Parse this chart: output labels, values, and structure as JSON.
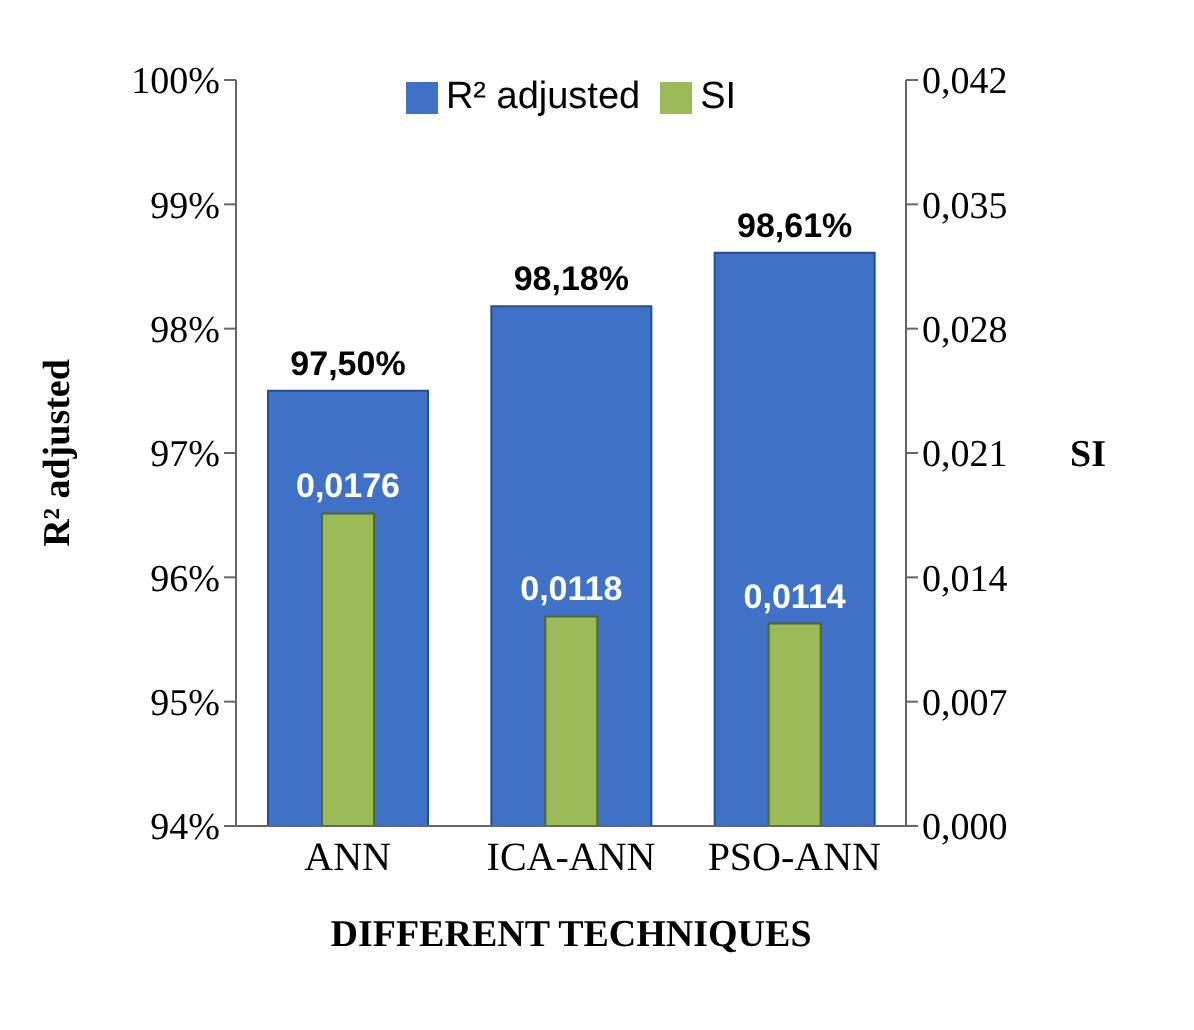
{
  "chart_data": {
    "type": "bar",
    "categories": [
      "ANN",
      "ICA-ANN",
      "PSO-ANN"
    ],
    "series": [
      {
        "name": "R² adjusted",
        "color": "#3f72c6",
        "values": [
          97.5,
          98.18,
          98.61
        ],
        "value_labels": [
          "97,50%",
          "98,18%",
          "98,61%"
        ]
      },
      {
        "name": "SI",
        "color": "#9bbb59",
        "axis": "y2",
        "values": [
          0.0176,
          0.0118,
          0.0114
        ],
        "value_labels": [
          "0,0176",
          "0,0118",
          "0,0114"
        ]
      }
    ],
    "xlabel": "DIFFERENT TECHNIQUES",
    "ylabel": "R² adjusted",
    "y2label": "SI",
    "ylim": [
      94,
      100
    ],
    "yticks": [
      {
        "value": 94,
        "label": "94%"
      },
      {
        "value": 95,
        "label": "95%"
      },
      {
        "value": 96,
        "label": "96%"
      },
      {
        "value": 97,
        "label": "97%"
      },
      {
        "value": 98,
        "label": "98%"
      },
      {
        "value": 99,
        "label": "99%"
      },
      {
        "value": 100,
        "label": "100%"
      }
    ],
    "y2lim": [
      0,
      0.042
    ],
    "y2ticks": [
      {
        "value": 0,
        "label": "0,000"
      },
      {
        "value": 0.007,
        "label": "0,007"
      },
      {
        "value": 0.014,
        "label": "0,014"
      },
      {
        "value": 0.021,
        "label": "0,021"
      },
      {
        "value": 0.028,
        "label": "0,028"
      },
      {
        "value": 0.035,
        "label": "0,035"
      },
      {
        "value": 0.042,
        "label": "0,042"
      }
    ],
    "legend": "top",
    "grid": false
  }
}
